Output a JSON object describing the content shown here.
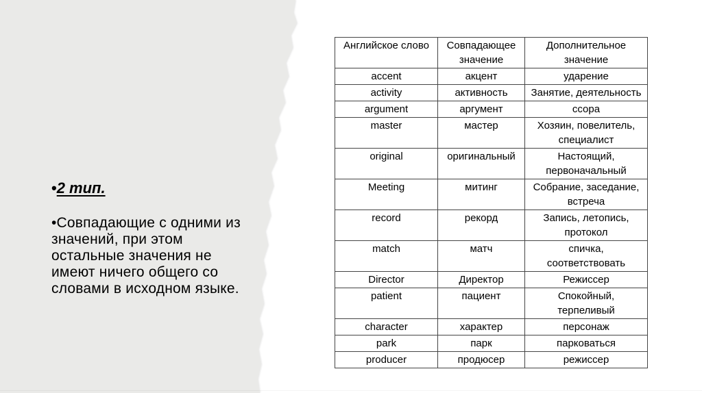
{
  "slide": {
    "background_color": "#ffffff",
    "panel_color": "#eaeae8"
  },
  "left_panel": {
    "heading_bullet": "•",
    "heading": "2 тип.",
    "paragraph_lines": [
      "•Совпадающие с одними из",
      "значений, при этом",
      "остальные значения не",
      "имеют ничего общего со",
      "словами в исходном языке."
    ]
  },
  "table": {
    "border_color": "#444444",
    "headers": [
      "Английское слово",
      "Совпадающее значение",
      "Дополнительное значение"
    ],
    "rows": [
      [
        "accent",
        "акцент",
        "ударение"
      ],
      [
        "activity",
        "активность",
        "Занятие, деятельность"
      ],
      [
        "argument",
        "аргумент",
        "ссора"
      ],
      [
        "master",
        "мастер",
        "Хозяин, повелитель, специалист"
      ],
      [
        "original",
        "оригинальный",
        "Настоящий, первоначальный"
      ],
      [
        "Meeting",
        "митинг",
        "Собрание, заседание, встреча"
      ],
      [
        "record",
        "рекорд",
        "Запись, летопись, протокол"
      ],
      [
        "match",
        "матч",
        "спичка, соответствовать"
      ],
      [
        "Director",
        "Директор",
        "Режиссер"
      ],
      [
        "patient",
        "пациент",
        "Спокойный, терпеливый"
      ],
      [
        "character",
        "характер",
        "персонаж"
      ],
      [
        "park",
        "парк",
        "парковаться"
      ],
      [
        "producer",
        "продюсер",
        "режиссер"
      ]
    ]
  }
}
